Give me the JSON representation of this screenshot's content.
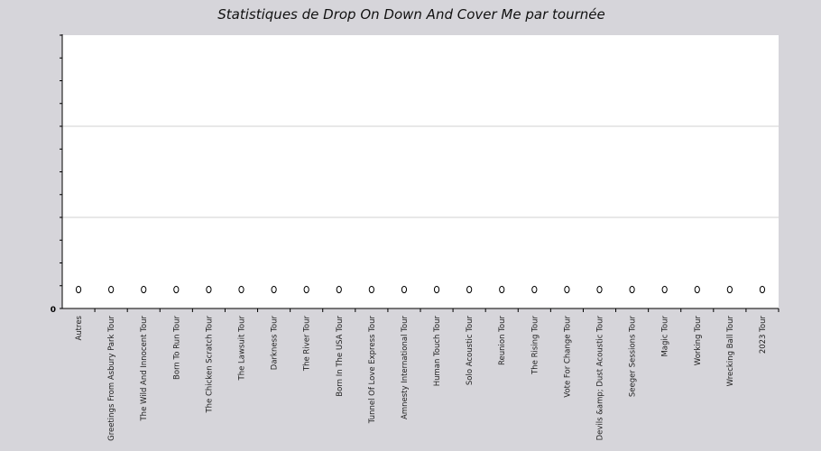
{
  "chart_data": {
    "type": "scatter",
    "title": "Statistiques de Drop On Down And Cover Me par tournée",
    "xlabel": "",
    "ylabel": "",
    "categories": [
      "Autres",
      "Greetings From Asbury Park Tour",
      "The Wild And Innocent Tour",
      "Born To Run Tour",
      "The Chicken Scratch Tour",
      "The Lawsuit Tour",
      "Darkness Tour",
      "The River Tour",
      "Born In The USA Tour",
      "Tunnel Of Love Express Tour",
      "Amnesty International Tour",
      "Human Touch Tour",
      "Solo Acoustic Tour",
      "Reunion Tour",
      "The Rising Tour",
      "Vote For Change Tour",
      "Devils &amp; Dust Acoustic Tour",
      "Seeger Sessions Tour",
      "Magic Tour",
      "Working Tour",
      "Wrecking Ball Tour",
      "2023 Tour"
    ],
    "series": [
      {
        "values": [
          0,
          0,
          0,
          0,
          0,
          0,
          0,
          0,
          0,
          0,
          0,
          0,
          0,
          0,
          0,
          0,
          0,
          0,
          0,
          0,
          0,
          0
        ]
      }
    ],
    "y_tick_labels": [
      "0"
    ],
    "ylim": [
      0,
      1
    ],
    "grid": true,
    "legend": "none",
    "colors": {
      "background": "#d6d5da",
      "plot_area": "#ffffff",
      "gridline": "#d0d0d0",
      "axis": "#000000",
      "marker_fill": "#ffffff",
      "marker_stroke": "#000000"
    }
  }
}
